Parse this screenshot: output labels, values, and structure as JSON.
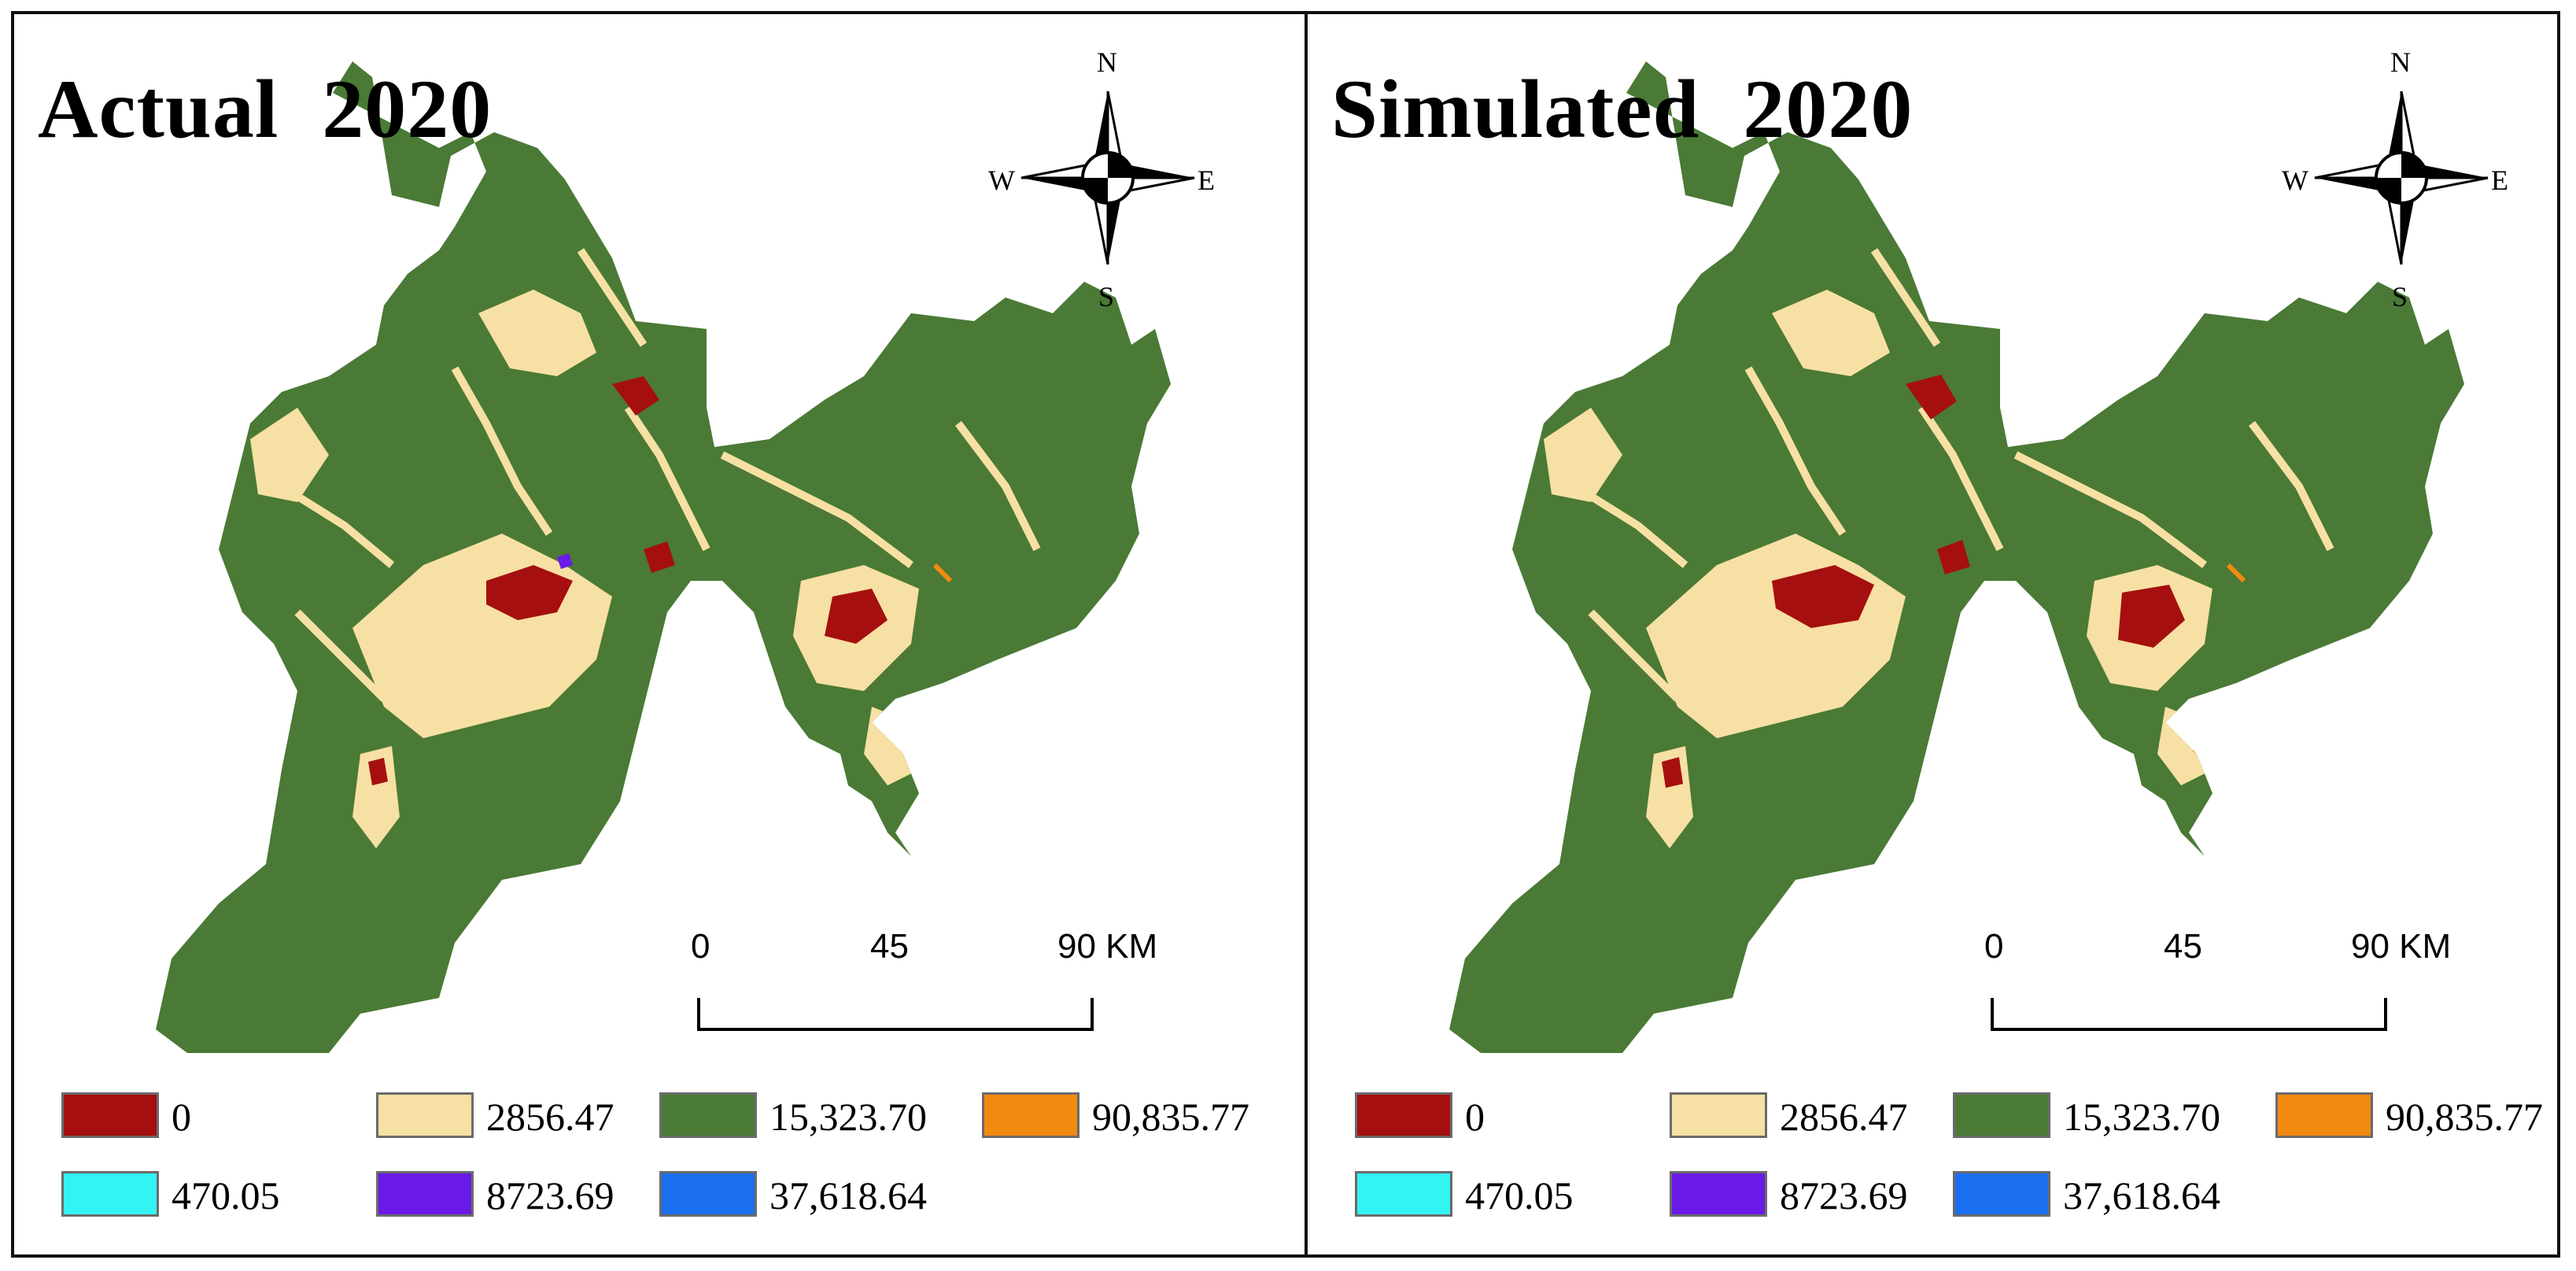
{
  "panels": [
    {
      "title": "Actual  2020"
    },
    {
      "title": "Simulated  2020"
    }
  ],
  "compass": {
    "north": "N",
    "south": "S",
    "east": "E",
    "west": "W"
  },
  "scale_bar": {
    "labels": [
      "0",
      "45",
      "90 KM"
    ]
  },
  "legend": {
    "items": [
      {
        "label": "0",
        "color": "#a50f0f"
      },
      {
        "label": "2856.47",
        "color": "#f7e0a3"
      },
      {
        "label": "15,323.70",
        "color": "#4a7a35"
      },
      {
        "label": "90,835.77",
        "color": "#f28a10"
      },
      {
        "label": "470.05",
        "color": "#33f3f3"
      },
      {
        "label": "8723.69",
        "color": "#6a1ae6"
      },
      {
        "label": "37,618.64",
        "color": "#1a6ef0"
      }
    ]
  },
  "colors": {
    "forest": "#4a7a35",
    "cropland": "#f7e0a3",
    "builtup": "#a50f0f",
    "orange": "#f28a10",
    "purple": "#6a1ae6",
    "border": "#111111"
  }
}
